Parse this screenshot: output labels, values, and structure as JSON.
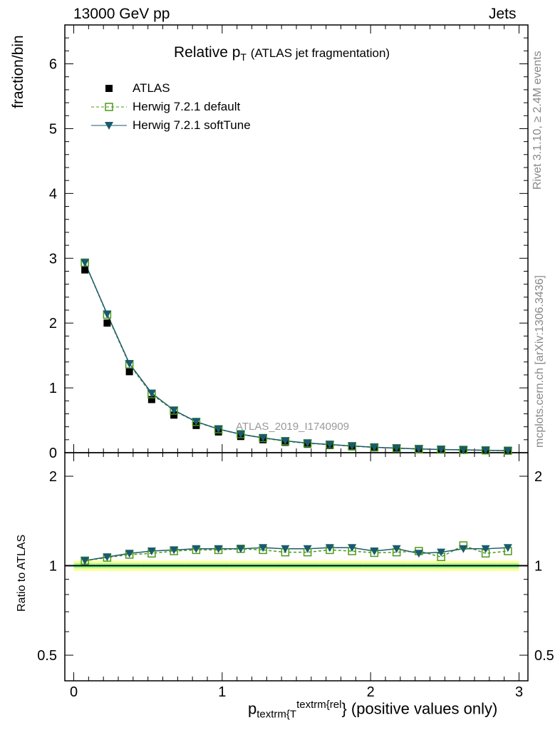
{
  "header": {
    "left": "13000 GeV pp",
    "right": "Jets"
  },
  "side": {
    "rivet": "Rivet 3.1.10, ≥ 2.4M events",
    "mcplots": "mcplots.cern.ch [arXiv:1306.3436]"
  },
  "chart_data": {
    "type": "scatter",
    "title_main": "Relative p",
    "title_sub": "T",
    "title_rest": "(ATLAS jet fragmentation)",
    "ylabel": "fraction/bin",
    "ratio_ylabel": "Ratio to ATLAS",
    "xlabel_p": "p",
    "xlabel_sub": "textrm{T",
    "xlabel_sup": "textrm{rel",
    "xlabel_rest": "} (positive values only)",
    "watermark": "ATLAS_2019_I1740909",
    "xlim": [
      -0.06,
      3.06
    ],
    "ylim": [
      0,
      6.6
    ],
    "ratio_ylim": [
      0.41,
      2.4
    ],
    "xticks": [
      "0",
      "1",
      "2",
      "3"
    ],
    "yticks": [
      "0",
      "1",
      "2",
      "3",
      "4",
      "5",
      "6"
    ],
    "ratio_yticks": [
      "0.5",
      "1",
      "2"
    ],
    "x": [
      0.075,
      0.225,
      0.375,
      0.525,
      0.675,
      0.825,
      0.975,
      1.125,
      1.275,
      1.425,
      1.575,
      1.725,
      1.875,
      2.025,
      2.175,
      2.325,
      2.475,
      2.625,
      2.775,
      2.925
    ],
    "series": [
      {
        "name": "ATLAS",
        "color": "#000000",
        "values": [
          2.82,
          2.0,
          1.25,
          0.82,
          0.58,
          0.42,
          0.32,
          0.25,
          0.2,
          0.16,
          0.13,
          0.11,
          0.09,
          0.075,
          0.062,
          0.052,
          0.045,
          0.038,
          0.033,
          0.028
        ]
      },
      {
        "name": "Herwig 7.2.1 default",
        "color": "#4c9a18",
        "ratio": [
          1.04,
          1.065,
          1.09,
          1.1,
          1.12,
          1.13,
          1.13,
          1.14,
          1.13,
          1.11,
          1.11,
          1.13,
          1.12,
          1.105,
          1.11,
          1.12,
          1.07,
          1.17,
          1.1,
          1.12
        ]
      },
      {
        "name": "Herwig 7.2.1 softTune",
        "color": "#1a5a6e",
        "ratio": [
          1.04,
          1.07,
          1.1,
          1.12,
          1.13,
          1.14,
          1.14,
          1.14,
          1.15,
          1.14,
          1.14,
          1.15,
          1.15,
          1.12,
          1.14,
          1.1,
          1.11,
          1.14,
          1.14,
          1.15
        ]
      }
    ],
    "band_stat": 0.02,
    "band_total": 0.04
  }
}
